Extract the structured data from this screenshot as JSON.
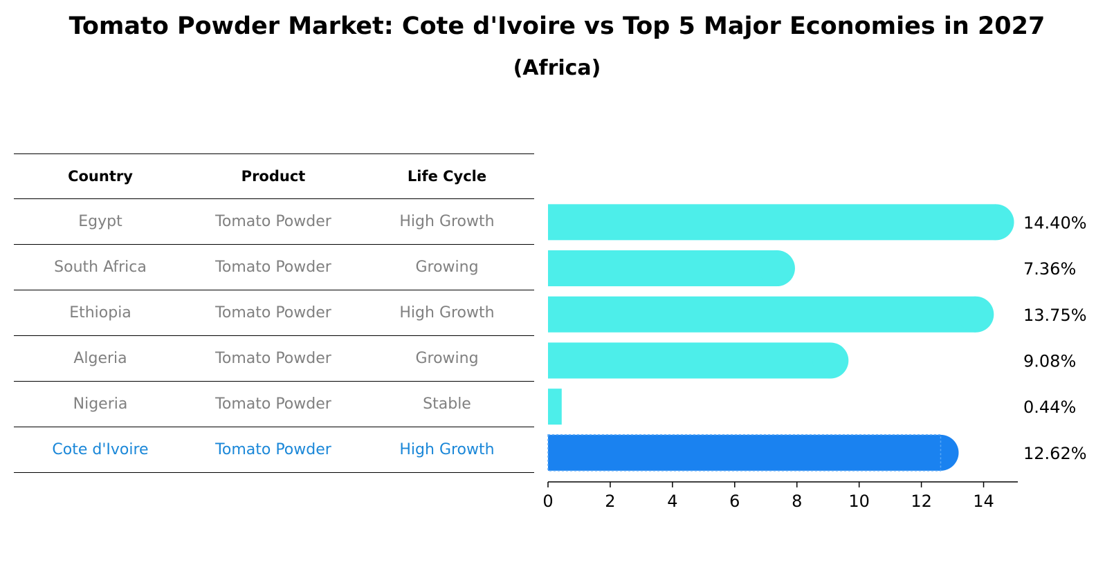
{
  "title": "Tomato Powder Market: Cote d'Ivoire vs Top 5 Major Economies in 2027",
  "subtitle": "(Africa)",
  "table": {
    "headers": [
      "Country",
      "Product",
      "Life Cycle"
    ],
    "rows": [
      {
        "country": "Egypt",
        "product": "Tomato Powder",
        "life_cycle": "High Growth"
      },
      {
        "country": "South Africa",
        "product": "Tomato Powder",
        "life_cycle": "Growing"
      },
      {
        "country": "Ethiopia",
        "product": "Tomato Powder",
        "life_cycle": "High Growth"
      },
      {
        "country": "Algeria",
        "product": "Tomato Powder",
        "life_cycle": "Growing"
      },
      {
        "country": "Nigeria",
        "product": "Tomato Powder",
        "life_cycle": "Stable"
      },
      {
        "country": "Cote d'Ivoire",
        "product": "Tomato Powder",
        "life_cycle": "High Growth"
      }
    ]
  },
  "colors": {
    "bar": "#4deeea",
    "highlight_bar": "#1a82f0",
    "highlight_text": "#1a87d8",
    "muted_text": "#808080"
  },
  "chart_data": {
    "type": "bar",
    "orientation": "horizontal",
    "categories": [
      "Egypt",
      "South Africa",
      "Ethiopia",
      "Algeria",
      "Nigeria",
      "Cote d'Ivoire"
    ],
    "values": [
      14.4,
      7.36,
      13.75,
      9.08,
      0.44,
      12.62
    ],
    "value_labels": [
      "14.40%",
      "7.36%",
      "13.75%",
      "9.08%",
      "0.44%",
      "12.62%"
    ],
    "highlight": "Cote d'Ivoire",
    "xticks": [
      0,
      2,
      4,
      6,
      8,
      10,
      12,
      14
    ],
    "xlim": [
      0,
      15.1
    ],
    "grid": false
  }
}
